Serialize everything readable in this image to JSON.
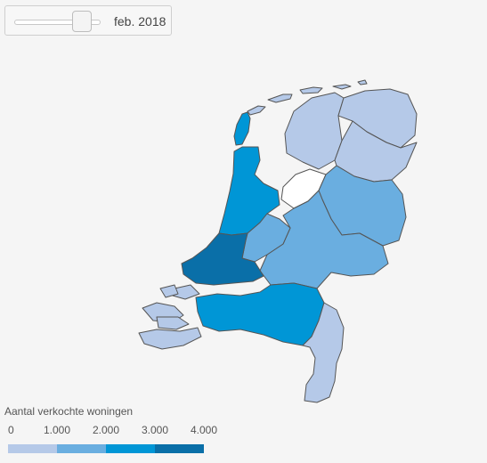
{
  "slider": {
    "value_label": "feb. 2018",
    "position": 0.8
  },
  "legend": {
    "title": "Aantal verkochte woningen",
    "ticks": [
      "0",
      "1.000",
      "2.000",
      "3.000",
      "4.000"
    ],
    "colors": [
      "#b5c9e8",
      "#6aaee0",
      "#0096d6",
      "#0a6fa8"
    ]
  }
}
